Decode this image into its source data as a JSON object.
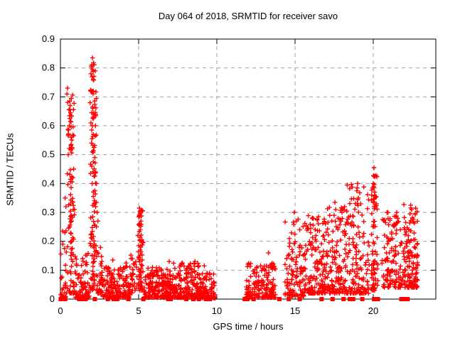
{
  "window": {
    "title": "Day 064 of 2018, SRMTID for receiver savo"
  },
  "chart_data": {
    "type": "scatter",
    "title": "Day 064 of 2018, SRMTID for receiver savo",
    "xlabel": "GPS time / hours",
    "ylabel": "SRMTID / TECUs",
    "xlim": [
      0,
      24
    ],
    "ylim": [
      0,
      0.9
    ],
    "xticks": [
      0,
      5,
      10,
      15,
      20
    ],
    "xtick_labels": [
      "0",
      "5",
      "10",
      "15",
      "20"
    ],
    "yticks": [
      0,
      0.1,
      0.2,
      0.3,
      0.4,
      0.5,
      0.6,
      0.7,
      0.8,
      0.9
    ],
    "ytick_labels": [
      "0",
      "0.1",
      "0.2",
      "0.3",
      "0.4",
      "0.5",
      "0.6",
      "0.7",
      "0.8",
      "0.9"
    ],
    "grid": true,
    "legend": "none",
    "marker": "plus",
    "marker_color": "#ff0000",
    "zero_marker": "filled-square",
    "data_gap_hours": [
      9.9,
      11.85
    ],
    "seed": 64,
    "highlight_points": [
      [
        0.15,
        0.19
      ],
      [
        0.28,
        0.23
      ],
      [
        0.3,
        0.35
      ],
      [
        0.35,
        0.32
      ],
      [
        0.45,
        0.73
      ],
      [
        0.42,
        0.71
      ],
      [
        0.6,
        0.685
      ],
      [
        0.62,
        0.67
      ],
      [
        0.55,
        0.655
      ],
      [
        0.65,
        0.645
      ],
      [
        0.58,
        0.635
      ],
      [
        0.6,
        0.625
      ],
      [
        0.63,
        0.615
      ],
      [
        0.57,
        0.6
      ],
      [
        0.52,
        0.585
      ],
      [
        0.68,
        0.56
      ],
      [
        0.75,
        0.52
      ],
      [
        0.5,
        0.5
      ],
      [
        0.85,
        0.45
      ],
      [
        0.8,
        0.42
      ],
      [
        0.9,
        0.31
      ],
      [
        2.05,
        0.835
      ],
      [
        2.0,
        0.8
      ],
      [
        1.95,
        0.78
      ],
      [
        2.02,
        0.77
      ],
      [
        2.1,
        0.72
      ],
      [
        1.9,
        0.68
      ],
      [
        2.05,
        0.665
      ],
      [
        2.0,
        0.645
      ],
      [
        2.1,
        0.625
      ],
      [
        1.95,
        0.61
      ],
      [
        2.05,
        0.6
      ],
      [
        2.0,
        0.585
      ],
      [
        2.1,
        0.57
      ],
      [
        2.02,
        0.555
      ],
      [
        1.98,
        0.54
      ],
      [
        2.15,
        0.525
      ],
      [
        2.05,
        0.51
      ],
      [
        2.2,
        0.49
      ],
      [
        2.1,
        0.475
      ],
      [
        2.0,
        0.46
      ],
      [
        2.25,
        0.44
      ],
      [
        2.15,
        0.425
      ],
      [
        2.3,
        0.4
      ],
      [
        2.2,
        0.375
      ],
      [
        2.1,
        0.355
      ],
      [
        2.3,
        0.335
      ],
      [
        2.25,
        0.32
      ],
      [
        2.35,
        0.3
      ],
      [
        2.4,
        0.27
      ],
      [
        2.3,
        0.25
      ],
      [
        3.35,
        0.135
      ],
      [
        4.2,
        0.125
      ],
      [
        5.05,
        0.315
      ],
      [
        5.1,
        0.3
      ],
      [
        5.0,
        0.285
      ],
      [
        5.15,
        0.27
      ],
      [
        5.05,
        0.255
      ],
      [
        5.1,
        0.24
      ],
      [
        4.95,
        0.22
      ],
      [
        5.2,
        0.2
      ],
      [
        5.0,
        0.185
      ],
      [
        5.1,
        0.17
      ],
      [
        6.95,
        0.13
      ],
      [
        7.8,
        0.125
      ],
      [
        8.6,
        0.13
      ],
      [
        9.2,
        0.115
      ],
      [
        12.0,
        0.12
      ],
      [
        12.8,
        0.115
      ],
      [
        13.3,
        0.16
      ],
      [
        13.5,
        0.12
      ],
      [
        14.95,
        0.3
      ],
      [
        15.1,
        0.27
      ],
      [
        15.3,
        0.24
      ],
      [
        16.0,
        0.245
      ],
      [
        16.5,
        0.285
      ],
      [
        17.5,
        0.29
      ],
      [
        17.55,
        0.335
      ],
      [
        17.6,
        0.31
      ],
      [
        18.0,
        0.3
      ],
      [
        18.95,
        0.375
      ],
      [
        19.0,
        0.4
      ],
      [
        19.05,
        0.35
      ],
      [
        19.2,
        0.33
      ],
      [
        19.9,
        0.36
      ],
      [
        19.95,
        0.385
      ],
      [
        20.05,
        0.455
      ],
      [
        20.1,
        0.425
      ],
      [
        20.0,
        0.4
      ],
      [
        20.05,
        0.385
      ],
      [
        20.1,
        0.37
      ],
      [
        20.15,
        0.355
      ],
      [
        20.0,
        0.345
      ],
      [
        20.2,
        0.33
      ],
      [
        21.45,
        0.285
      ],
      [
        21.5,
        0.3
      ],
      [
        21.55,
        0.265
      ],
      [
        22.35,
        0.295
      ],
      [
        22.4,
        0.325
      ],
      [
        22.45,
        0.31
      ]
    ],
    "cluster_bands": [
      {
        "x0": 0.02,
        "x1": 0.4,
        "n": 25,
        "ymin": 0.005,
        "ymax": 0.24,
        "skew": 2.2,
        "shape": "band"
      },
      {
        "x0": 0.42,
        "x1": 0.92,
        "n": 90,
        "ymin": 0.02,
        "ymax": 0.72,
        "skew": 1.6,
        "shape": "spike"
      },
      {
        "x0": 0.9,
        "x1": 1.85,
        "n": 80,
        "ymin": 0.005,
        "ymax": 0.17,
        "skew": 2.2,
        "shape": "band"
      },
      {
        "x0": 1.87,
        "x1": 2.35,
        "n": 105,
        "ymin": 0.03,
        "ymax": 0.82,
        "skew": 1.5,
        "shape": "spike"
      },
      {
        "x0": 2.35,
        "x1": 2.65,
        "n": 25,
        "ymin": 0.02,
        "ymax": 0.18,
        "skew": 1.8,
        "shape": "band"
      },
      {
        "x0": 2.6,
        "x1": 4.5,
        "n": 170,
        "ymin": 0.005,
        "ymax": 0.115,
        "skew": 2.0,
        "shape": "band"
      },
      {
        "x0": 4.5,
        "x1": 4.9,
        "n": 25,
        "ymin": 0.02,
        "ymax": 0.16,
        "skew": 1.8,
        "shape": "band"
      },
      {
        "x0": 4.9,
        "x1": 5.35,
        "n": 60,
        "ymin": 0.03,
        "ymax": 0.31,
        "skew": 1.6,
        "shape": "spike"
      },
      {
        "x0": 5.35,
        "x1": 7.2,
        "n": 200,
        "ymin": 0.005,
        "ymax": 0.115,
        "skew": 2.0,
        "shape": "band"
      },
      {
        "x0": 7.2,
        "x1": 9.0,
        "n": 200,
        "ymin": 0.005,
        "ymax": 0.125,
        "skew": 2.0,
        "shape": "band"
      },
      {
        "x0": 9.0,
        "x1": 9.9,
        "n": 90,
        "ymin": 0.003,
        "ymax": 0.09,
        "skew": 2.2,
        "shape": "band"
      },
      {
        "x0": 11.85,
        "x1": 13.75,
        "n": 160,
        "ymin": 0.005,
        "ymax": 0.125,
        "skew": 2.0,
        "shape": "band"
      },
      {
        "x0": 14.35,
        "x1": 15.6,
        "n": 110,
        "ymin": 0.01,
        "ymax": 0.28,
        "skew": 2.0,
        "shape": "band"
      },
      {
        "x0": 15.6,
        "x1": 16.8,
        "n": 130,
        "ymin": 0.02,
        "ymax": 0.29,
        "skew": 2.2,
        "shape": "band"
      },
      {
        "x0": 16.8,
        "x1": 18.2,
        "n": 150,
        "ymin": 0.02,
        "ymax": 0.33,
        "skew": 2.2,
        "shape": "band"
      },
      {
        "x0": 18.2,
        "x1": 19.75,
        "n": 150,
        "ymin": 0.02,
        "ymax": 0.4,
        "skew": 2.2,
        "shape": "band"
      },
      {
        "x0": 19.8,
        "x1": 20.35,
        "n": 70,
        "ymin": 0.03,
        "ymax": 0.45,
        "skew": 1.7,
        "shape": "spike"
      },
      {
        "x0": 20.55,
        "x1": 21.85,
        "n": 120,
        "ymin": 0.04,
        "ymax": 0.3,
        "skew": 1.9,
        "shape": "band"
      },
      {
        "x0": 21.9,
        "x1": 22.85,
        "n": 130,
        "ymin": 0.04,
        "ymax": 0.33,
        "skew": 1.9,
        "shape": "band"
      }
    ],
    "zero_marker_x": [
      0.02,
      0.3,
      1.21,
      1.44,
      1.6,
      2.2,
      3.03,
      3.4,
      3.63,
      4.35,
      5.3,
      6.9,
      7.05,
      8.05,
      8.5,
      8.85,
      9.3,
      9.55,
      11.78,
      11.95,
      12.35,
      14.0,
      14.6,
      15.3,
      16.7,
      17.4,
      18.1,
      18.5,
      18.72,
      19.3,
      20.05,
      20.3,
      21.8,
      21.95,
      22.1,
      22.2
    ]
  },
  "colors": {
    "background": "#ffffff",
    "marker": "#ff0000",
    "axis": "#000000",
    "grid": "#9e9e9e",
    "text": "#000000"
  }
}
